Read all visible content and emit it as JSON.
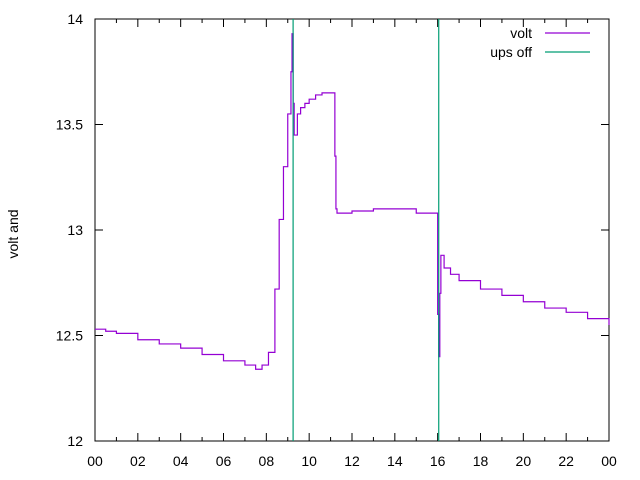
{
  "chart_data": {
    "type": "line",
    "title": "",
    "xlabel": "",
    "ylabel": "volt and",
    "xlim": [
      0,
      24
    ],
    "ylim": [
      12,
      14
    ],
    "x_ticks": [
      "00",
      "02",
      "04",
      "06",
      "08",
      "10",
      "12",
      "14",
      "16",
      "18",
      "20",
      "22",
      "00"
    ],
    "y_ticks": [
      "12",
      "12.5",
      "13",
      "13.5",
      "14"
    ],
    "grid": false,
    "legend_placement": "top-right",
    "series": [
      {
        "name": "volt",
        "color": "#9400d3",
        "x": [
          0,
          0.5,
          1,
          2,
          3,
          4,
          5,
          6,
          7,
          7.5,
          7.8,
          8.1,
          8.4,
          8.6,
          8.8,
          9.0,
          9.15,
          9.2,
          9.25,
          9.3,
          9.45,
          9.6,
          9.8,
          10.0,
          10.3,
          10.6,
          10.9,
          11.15,
          11.2,
          11.25,
          11.3,
          11.35,
          12,
          13,
          14,
          15,
          15.5,
          15.95,
          16.0,
          16.05,
          16.1,
          16.15,
          16.3,
          16.6,
          17,
          18,
          19,
          20,
          21,
          22,
          23,
          24
        ],
        "y": [
          12.53,
          12.52,
          12.51,
          12.48,
          12.46,
          12.44,
          12.41,
          12.38,
          12.36,
          12.34,
          12.36,
          12.42,
          12.72,
          13.05,
          13.3,
          13.55,
          13.75,
          13.93,
          13.6,
          13.45,
          13.55,
          13.58,
          13.6,
          13.62,
          13.64,
          13.65,
          13.65,
          13.65,
          13.35,
          13.1,
          13.08,
          13.08,
          13.09,
          13.1,
          13.1,
          13.08,
          13.08,
          13.08,
          12.6,
          12.4,
          12.7,
          12.88,
          12.82,
          12.79,
          12.76,
          12.72,
          12.69,
          12.66,
          12.63,
          12.61,
          12.58,
          12.55
        ]
      },
      {
        "name": "ups off",
        "color": "#009e73",
        "x": [
          9.25,
          16.05
        ],
        "y": [
          14,
          14
        ]
      }
    ]
  }
}
